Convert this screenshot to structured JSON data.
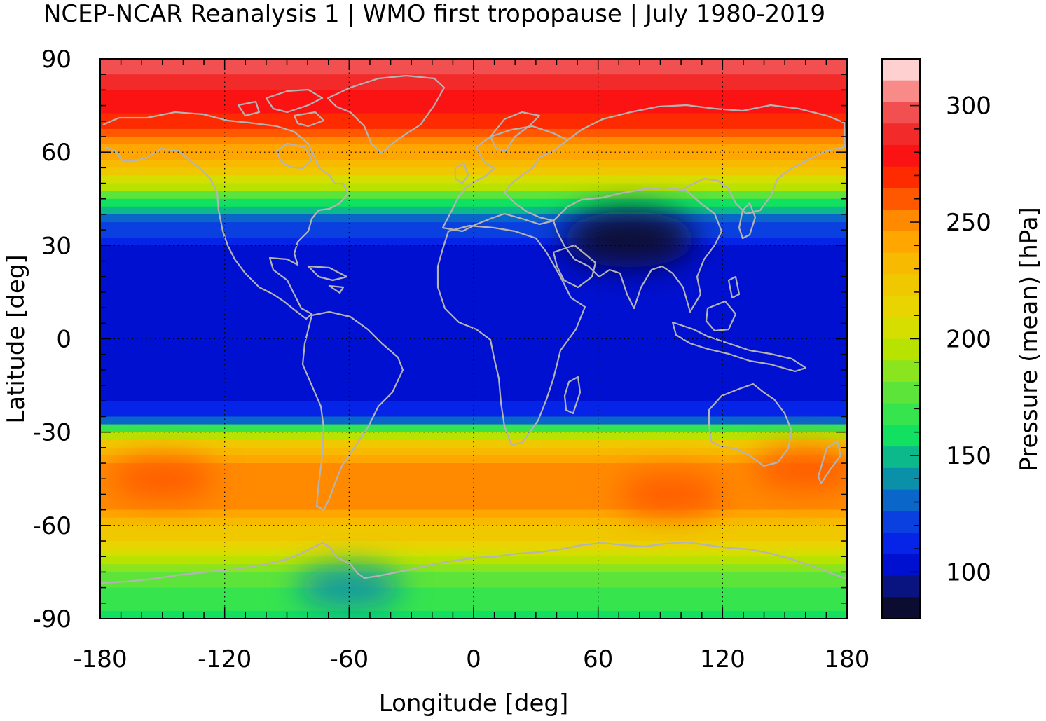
{
  "chart_data": {
    "type": "heatmap",
    "title": "NCEP-NCAR Reanalysis 1 | WMO first tropopause | July 1980-2019",
    "xlabel": "Longitude [deg]",
    "ylabel": "Latitude [deg]",
    "colorbar_label": "Pressure (mean) [hPa]",
    "xlim": [
      -180,
      180
    ],
    "ylim": [
      -90,
      90
    ],
    "x_ticks": [
      -180,
      -120,
      -60,
      0,
      60,
      120,
      180
    ],
    "y_ticks": [
      90,
      60,
      30,
      0,
      -30,
      -60,
      -90
    ],
    "colorbar_range": [
      80,
      320
    ],
    "colorbar_ticks": [
      300,
      250,
      200,
      150,
      100
    ],
    "grid": "dotted",
    "colorbar_colors": [
      "#ffd0d0",
      "#f88a88",
      "#f25050",
      "#f22a2a",
      "#fb1212",
      "#fe2a00",
      "#ff5800",
      "#ff8a00",
      "#ffa600",
      "#f7ba00",
      "#f0c800",
      "#e8d400",
      "#d6de00",
      "#b8e200",
      "#8ae41e",
      "#5ce43a",
      "#36e44e",
      "#12e060",
      "#0cb98a",
      "#0a90a8",
      "#0a66c8",
      "#0a40e0",
      "#0624e8",
      "#0010d0",
      "#0a1480",
      "#0c0c30"
    ],
    "coastline_color": "#b4b4b4",
    "lat_profile_hpa": [
      {
        "lat": 90,
        "value": 300
      },
      {
        "lat": 80,
        "value": 285
      },
      {
        "lat": 70,
        "value": 268
      },
      {
        "lat": 60,
        "value": 242
      },
      {
        "lat": 52,
        "value": 212
      },
      {
        "lat": 45,
        "value": 170
      },
      {
        "lat": 38,
        "value": 128
      },
      {
        "lat": 30,
        "value": 108
      },
      {
        "lat": 15,
        "value": 102
      },
      {
        "lat": 0,
        "value": 101
      },
      {
        "lat": -15,
        "value": 103
      },
      {
        "lat": -25,
        "value": 112
      },
      {
        "lat": -30,
        "value": 185
      },
      {
        "lat": -35,
        "value": 232
      },
      {
        "lat": -45,
        "value": 255
      },
      {
        "lat": -55,
        "value": 245
      },
      {
        "lat": -65,
        "value": 215
      },
      {
        "lat": -75,
        "value": 180
      },
      {
        "lat": -85,
        "value": 165
      },
      {
        "lat": -90,
        "value": 160
      }
    ],
    "features": [
      {
        "name": "Tibetan Plateau minimum",
        "lon": 75,
        "lat": 32,
        "value": 88
      },
      {
        "name": "South Pacific maximum",
        "lon": -150,
        "lat": -45,
        "value": 258
      },
      {
        "name": "South Indian Ocean maximum",
        "lon": 95,
        "lat": -50,
        "value": 258
      },
      {
        "name": "Tasman Sea maximum",
        "lon": 160,
        "lat": -42,
        "value": 258
      },
      {
        "name": "West Antarctic low",
        "lon": -60,
        "lat": -80,
        "value": 140
      }
    ]
  }
}
